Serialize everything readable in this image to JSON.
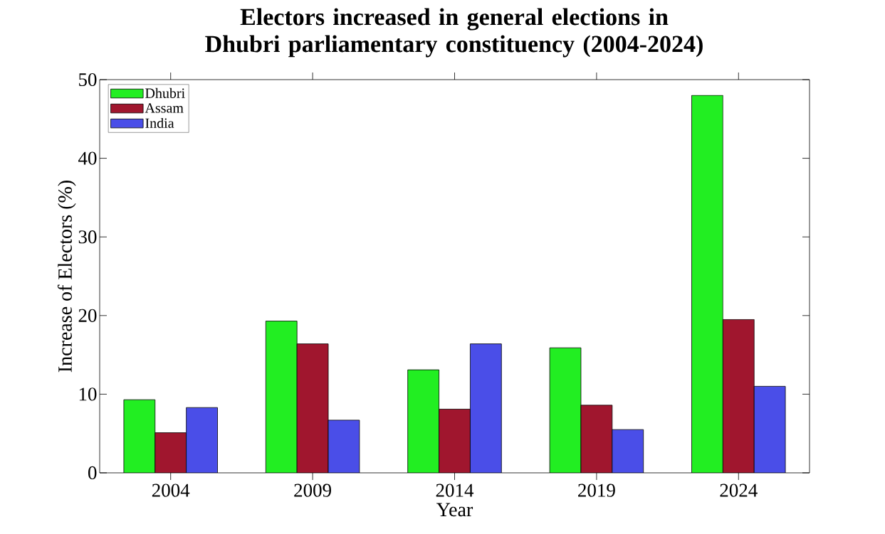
{
  "chart_data": {
    "type": "bar",
    "title": "Electors increased in general elections in Dhubri parliamentary constituency (2004-2024)",
    "xlabel": "Year",
    "ylabel": "Increase of Electors (%)",
    "categories": [
      "2004",
      "2009",
      "2014",
      "2019",
      "2024"
    ],
    "series": [
      {
        "name": "Dhubri",
        "color": "#22ee22",
        "values": [
          9.3,
          19.3,
          13.1,
          15.9,
          48.0
        ]
      },
      {
        "name": "Assam",
        "color": "#a0162e",
        "values": [
          5.1,
          16.4,
          8.1,
          8.6,
          19.5
        ]
      },
      {
        "name": "India",
        "color": "#4a4ee8",
        "values": [
          8.3,
          6.7,
          16.4,
          5.5,
          11.0
        ]
      }
    ],
    "ylim": [
      0,
      50
    ],
    "yticks": [
      0,
      10,
      20,
      30,
      40,
      50
    ],
    "legend": "top left",
    "grid": false
  }
}
